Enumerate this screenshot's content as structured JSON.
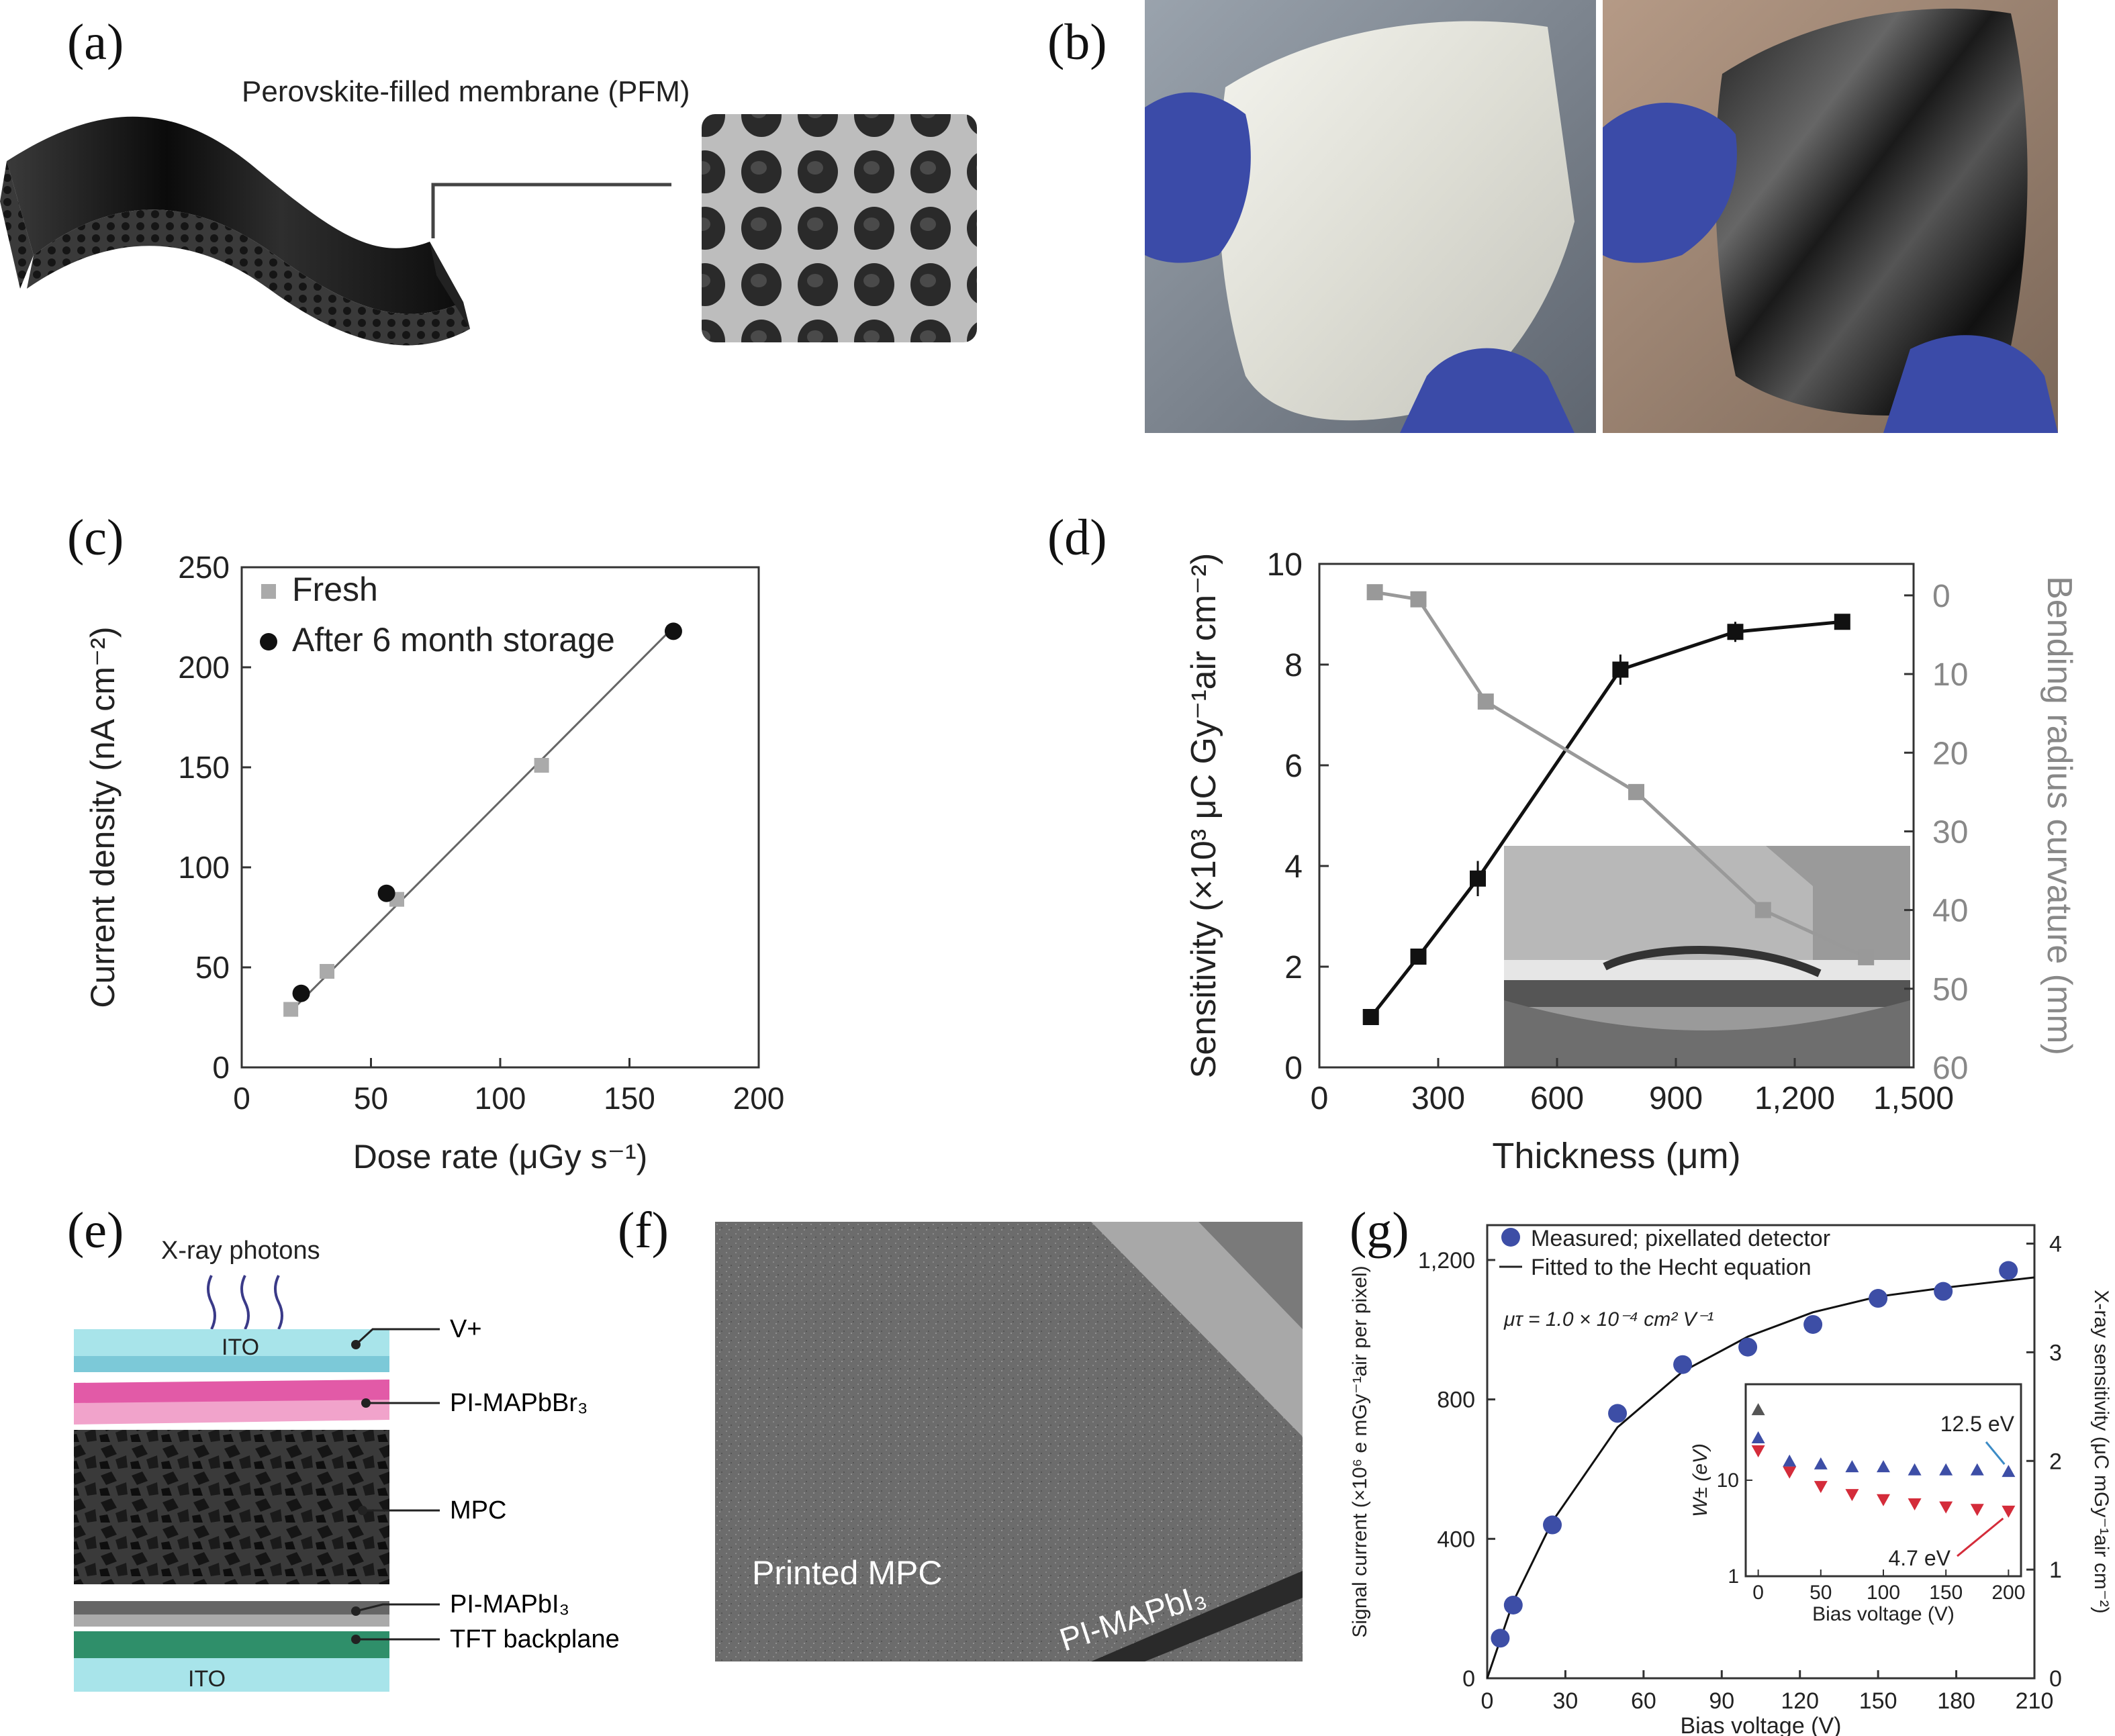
{
  "panels": {
    "a": {
      "label": "(a)",
      "title": "Perovskite-filled membrane (PFM)"
    },
    "b": {
      "label": "(b)"
    },
    "c": {
      "label": "(c)"
    },
    "d": {
      "label": "(d)"
    },
    "e": {
      "label": "(e)",
      "photons": "X-ray photons",
      "ito_top": "ITO",
      "ito_bottom": "ITO",
      "layers": [
        "V+",
        "PI-MAPbBr₃",
        "MPC",
        "PI-MAPbI₃",
        "TFT backplane"
      ]
    },
    "f": {
      "label": "(f)",
      "printed": "Printed MPC",
      "pi": "PI-MAPbI₃"
    },
    "g": {
      "label": "(g)"
    }
  },
  "chart_data": [
    {
      "id": "c",
      "type": "scatter",
      "xlabel": "Dose rate (μGy s⁻¹)",
      "ylabel": "Current density (nA cm⁻²)",
      "xlim": [
        0,
        200
      ],
      "ylim": [
        0,
        250
      ],
      "xticks": [
        0,
        50,
        100,
        150,
        200
      ],
      "yticks": [
        0,
        50,
        100,
        150,
        200,
        250
      ],
      "legend_position": "top-left",
      "series": [
        {
          "name": "Fresh",
          "color": "#aaaaaa",
          "marker": "square",
          "x": [
            19,
            33,
            60,
            116
          ],
          "y": [
            29,
            48,
            84,
            151
          ]
        },
        {
          "name": "After 6 month storage",
          "color": "#111111",
          "marker": "circle",
          "x": [
            23,
            56,
            167
          ],
          "y": [
            37,
            87,
            218
          ]
        }
      ],
      "fit": {
        "x": [
          19,
          167
        ],
        "y": [
          28,
          220
        ],
        "color": "#666666"
      }
    },
    {
      "id": "d",
      "type": "line",
      "xlabel": "Thickness (μm)",
      "ylabel": "Sensitivity (×10³ μC Gy⁻¹air cm⁻²)",
      "y2label": "Bending radius curvature (mm)",
      "xlim": [
        0,
        1500
      ],
      "ylim": [
        0,
        10
      ],
      "y2lim": [
        60,
        -4
      ],
      "xticks": [
        0,
        300,
        600,
        900,
        1200,
        1500
      ],
      "xtick_labels": [
        "0",
        "300",
        "600",
        "900",
        "1,200",
        "1,500"
      ],
      "yticks": [
        0,
        2,
        4,
        6,
        8,
        10
      ],
      "y2ticks": [
        0,
        10,
        20,
        30,
        40,
        50,
        60
      ],
      "series": [
        {
          "name": "Sensitivity",
          "axis": "left",
          "color": "#111111",
          "marker": "square",
          "x": [
            130,
            250,
            400,
            760,
            1050,
            1320
          ],
          "y": [
            1.0,
            2.2,
            3.75,
            7.9,
            8.65,
            8.85
          ],
          "err": [
            0,
            0,
            0.35,
            0.3,
            0.2,
            0.15
          ]
        },
        {
          "name": "Bending radius",
          "axis": "right",
          "color": "#999999",
          "marker": "square",
          "x": [
            140,
            250,
            420,
            800,
            1120,
            1380
          ],
          "y": [
            -0.4,
            0.5,
            13.5,
            25,
            40,
            46
          ]
        }
      ]
    },
    {
      "id": "g",
      "type": "scatter",
      "legend": [
        "Measured; pixellated detector",
        "Fitted to the Hecht equation"
      ],
      "annotation": "μτ = 1.0 × 10⁻⁴ cm² V⁻¹",
      "xlabel": "Bias voltage (V)",
      "ylabel": "Signal current (×10⁶ e mGy⁻¹air per pixel)",
      "y2label": "X-ray sensitivity (μC mGy⁻¹air cm⁻²)",
      "xlim": [
        0,
        210
      ],
      "ylim": [
        0,
        1300
      ],
      "y2lim": [
        0,
        4.17
      ],
      "xticks": [
        0,
        30,
        60,
        90,
        120,
        150,
        180,
        210
      ],
      "yticks": [
        0,
        400,
        800,
        1200
      ],
      "ytick_labels": [
        "0",
        "400",
        "800",
        "1,200"
      ],
      "y2ticks": [
        0,
        1,
        2,
        3,
        4
      ],
      "series": [
        {
          "name": "Measured; pixellated detector",
          "color": "#3d4ea6",
          "marker": "circle",
          "x": [
            5,
            10,
            25,
            50,
            75,
            100,
            125,
            150,
            175,
            200
          ],
          "y": [
            115,
            210,
            440,
            760,
            900,
            950,
            1015,
            1090,
            1110,
            1170
          ]
        },
        {
          "name": "Fitted to the Hecht equation",
          "color": "#111111",
          "marker": "line",
          "x": [
            0,
            10,
            25,
            50,
            75,
            100,
            125,
            150,
            175,
            210
          ],
          "y": [
            0,
            220,
            450,
            720,
            880,
            980,
            1050,
            1095,
            1120,
            1150
          ]
        }
      ],
      "inset": {
        "xlabel": "Bias voltage (V)",
        "ylabel": "W± (eV)",
        "xlim": [
          -10,
          210
        ],
        "ylim_log": [
          1,
          100
        ],
        "xticks": [
          0,
          50,
          100,
          150,
          200
        ],
        "ytick_labels": [
          "1",
          "10"
        ],
        "labels": [
          "12.5 eV",
          "4.7 eV"
        ],
        "series": [
          {
            "color": "#555555",
            "marker": "triangle-up",
            "x": [
              0
            ],
            "y": [
              55
            ]
          },
          {
            "color": "#3d4ea6",
            "marker": "triangle-up",
            "x": [
              0,
              25,
              50,
              75,
              100,
              125,
              150,
              175,
              200
            ],
            "y": [
              28,
              16,
              15,
              14,
              14,
              13,
              13,
              13,
              12.5
            ]
          },
          {
            "color": "#d42c3a",
            "marker": "triangle-down",
            "x": [
              0,
              25,
              50,
              75,
              100,
              125,
              150,
              175,
              200
            ],
            "y": [
              20,
              12,
              8.5,
              7,
              6.2,
              5.6,
              5.2,
              4.9,
              4.7
            ]
          }
        ]
      }
    }
  ]
}
